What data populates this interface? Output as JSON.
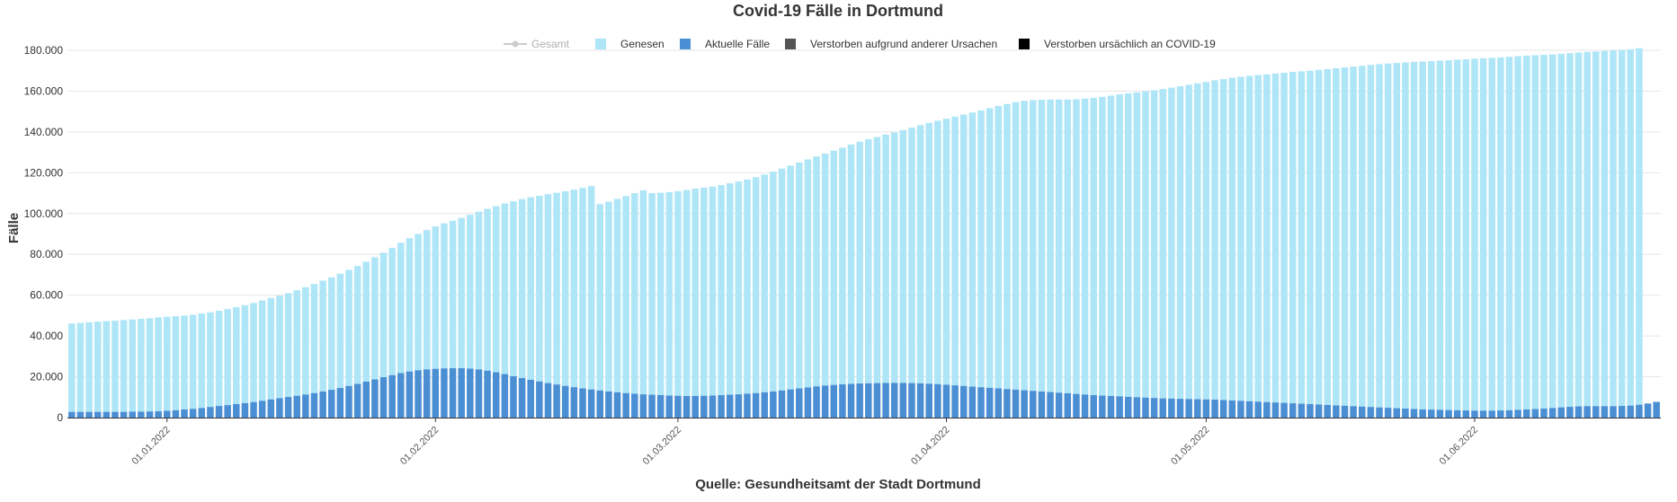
{
  "chart_data": {
    "type": "bar",
    "stacked": true,
    "title": "Covid-19 Fälle in Dortmund",
    "ylabel": "Fälle",
    "xlabel": "Quelle: Gesundheitsamt der Stadt Dortmund",
    "ylim": [
      0,
      180000
    ],
    "y_ticks": [
      0,
      20000,
      40000,
      60000,
      80000,
      100000,
      120000,
      140000,
      160000,
      180000
    ],
    "y_tick_labels": [
      "0",
      "20.000",
      "40.000",
      "60.000",
      "80.000",
      "100.000",
      "120.000",
      "140.000",
      "160.000",
      "180.000"
    ],
    "x_tick_labels": [
      "01.01.2022",
      "01.02.2022",
      "01.03.2022",
      "01.04.2022",
      "01.05.2022",
      "01.06.2022"
    ],
    "grid": true,
    "legend_position": "top-center",
    "legend": [
      {
        "name": "Gesamt",
        "color": "#cccccc",
        "symbol": "line",
        "inactive": true
      },
      {
        "name": "Genesen",
        "color": "#aee6f8",
        "symbol": "square"
      },
      {
        "name": "Aktuelle Fälle",
        "color": "#4a8fd4",
        "symbol": "square"
      },
      {
        "name": "Verstorben aufgrund anderer Ursachen",
        "color": "#555555",
        "symbol": "square"
      },
      {
        "name": "Verstorben ursächlich an COVID-19",
        "color": "#000000",
        "symbol": "square"
      }
    ],
    "series": [
      {
        "name": "Aktuelle Fälle",
        "color": "#4a8fd4",
        "values": [
          2800,
          2800,
          2800,
          2800,
          2800,
          2800,
          2800,
          2900,
          2900,
          3000,
          3100,
          3300,
          3600,
          4000,
          4300,
          4700,
          5200,
          5700,
          6100,
          6600,
          7100,
          7600,
          8200,
          8900,
          9500,
          10100,
          10700,
          11300,
          12000,
          12800,
          13600,
          14500,
          15500,
          16500,
          17600,
          18700,
          19800,
          20800,
          21800,
          22600,
          23200,
          23600,
          23900,
          24100,
          24200,
          24200,
          24000,
          23600,
          23000,
          22200,
          21300,
          20300,
          19400,
          18500,
          17700,
          16900,
          16200,
          15500,
          14900,
          14300,
          13800,
          13300,
          12800,
          12400,
          12000,
          11700,
          11400,
          11200,
          11000,
          10800,
          10700,
          10600,
          10600,
          10700,
          10800,
          11000,
          11200,
          11400,
          11700,
          12000,
          12400,
          12800,
          13300,
          13800,
          14300,
          14800,
          15300,
          15700,
          16000,
          16300,
          16500,
          16700,
          16800,
          16900,
          17000,
          17000,
          17000,
          16900,
          16800,
          16600,
          16400,
          16100,
          15800,
          15500,
          15200,
          14900,
          14600,
          14300,
          14000,
          13700,
          13400,
          13100,
          12800,
          12500,
          12200,
          11900,
          11600,
          11300,
          11000,
          10800,
          10600,
          10400,
          10200,
          10000,
          9800,
          9600,
          9400,
          9300,
          9200,
          9100,
          9000,
          8900,
          8800,
          8600,
          8400,
          8200,
          8000,
          7800,
          7600,
          7400,
          7200,
          7000,
          6800,
          6600,
          6400,
          6200,
          6000,
          5800,
          5600,
          5400,
          5200,
          5000,
          4800,
          4600,
          4400,
          4200,
          4000,
          3900,
          3800,
          3700,
          3600,
          3500,
          3400,
          3400,
          3400,
          3500,
          3600,
          3800,
          4000,
          4200,
          4400,
          4700,
          5000,
          5300,
          5500,
          5600,
          5600,
          5600,
          5600,
          5700,
          5900,
          6300,
          6900,
          7700
        ]
      },
      {
        "name": "Genesen",
        "color": "#aee6f8",
        "values": [
          43300,
          43600,
          43900,
          44200,
          44500,
          44700,
          45000,
          45200,
          45500,
          45700,
          46000,
          46100,
          46100,
          46000,
          46100,
          46300,
          46400,
          46700,
          47100,
          47500,
          48000,
          48600,
          49200,
          49700,
          50200,
          50900,
          51700,
          52600,
          53500,
          54300,
          55100,
          56000,
          56900,
          57800,
          58800,
          59900,
          61000,
          62400,
          63900,
          65300,
          66800,
          68300,
          69800,
          71100,
          72300,
          73700,
          75400,
          77300,
          79300,
          81400,
          83600,
          85700,
          87700,
          89500,
          91000,
          92600,
          94000,
          95400,
          96800,
          98200,
          99700,
          91300,
          93000,
          94800,
          96600,
          98300,
          100000,
          98800,
          99200,
          99700,
          100200,
          100900,
          101600,
          102000,
          102400,
          102900,
          103600,
          104300,
          105000,
          105800,
          106700,
          107700,
          108700,
          109700,
          110700,
          111700,
          112700,
          113700,
          114800,
          116000,
          117300,
          118500,
          119600,
          120600,
          121700,
          122800,
          123900,
          125200,
          126500,
          127800,
          129100,
          130400,
          131700,
          133000,
          134300,
          135600,
          137000,
          138400,
          139700,
          140900,
          141800,
          142500,
          143000,
          143400,
          143700,
          144000,
          144400,
          145000,
          145700,
          146400,
          147200,
          148000,
          148700,
          149400,
          150100,
          150800,
          151600,
          152400,
          153200,
          154000,
          154800,
          155600,
          156500,
          157300,
          158100,
          158800,
          159500,
          160100,
          160600,
          161200,
          161800,
          162400,
          162900,
          163400,
          164000,
          164600,
          165200,
          165800,
          166400,
          167000,
          167600,
          168200,
          168700,
          169200,
          169600,
          170100,
          170500,
          170800,
          171100,
          171400,
          171800,
          172100,
          172500,
          172700,
          172900,
          173000,
          173200,
          173300,
          173400,
          173400,
          173400,
          173300,
          173300,
          173300,
          173400,
          173600,
          173800,
          174100,
          174400,
          174500,
          174600,
          174700
        ]
      }
    ]
  }
}
